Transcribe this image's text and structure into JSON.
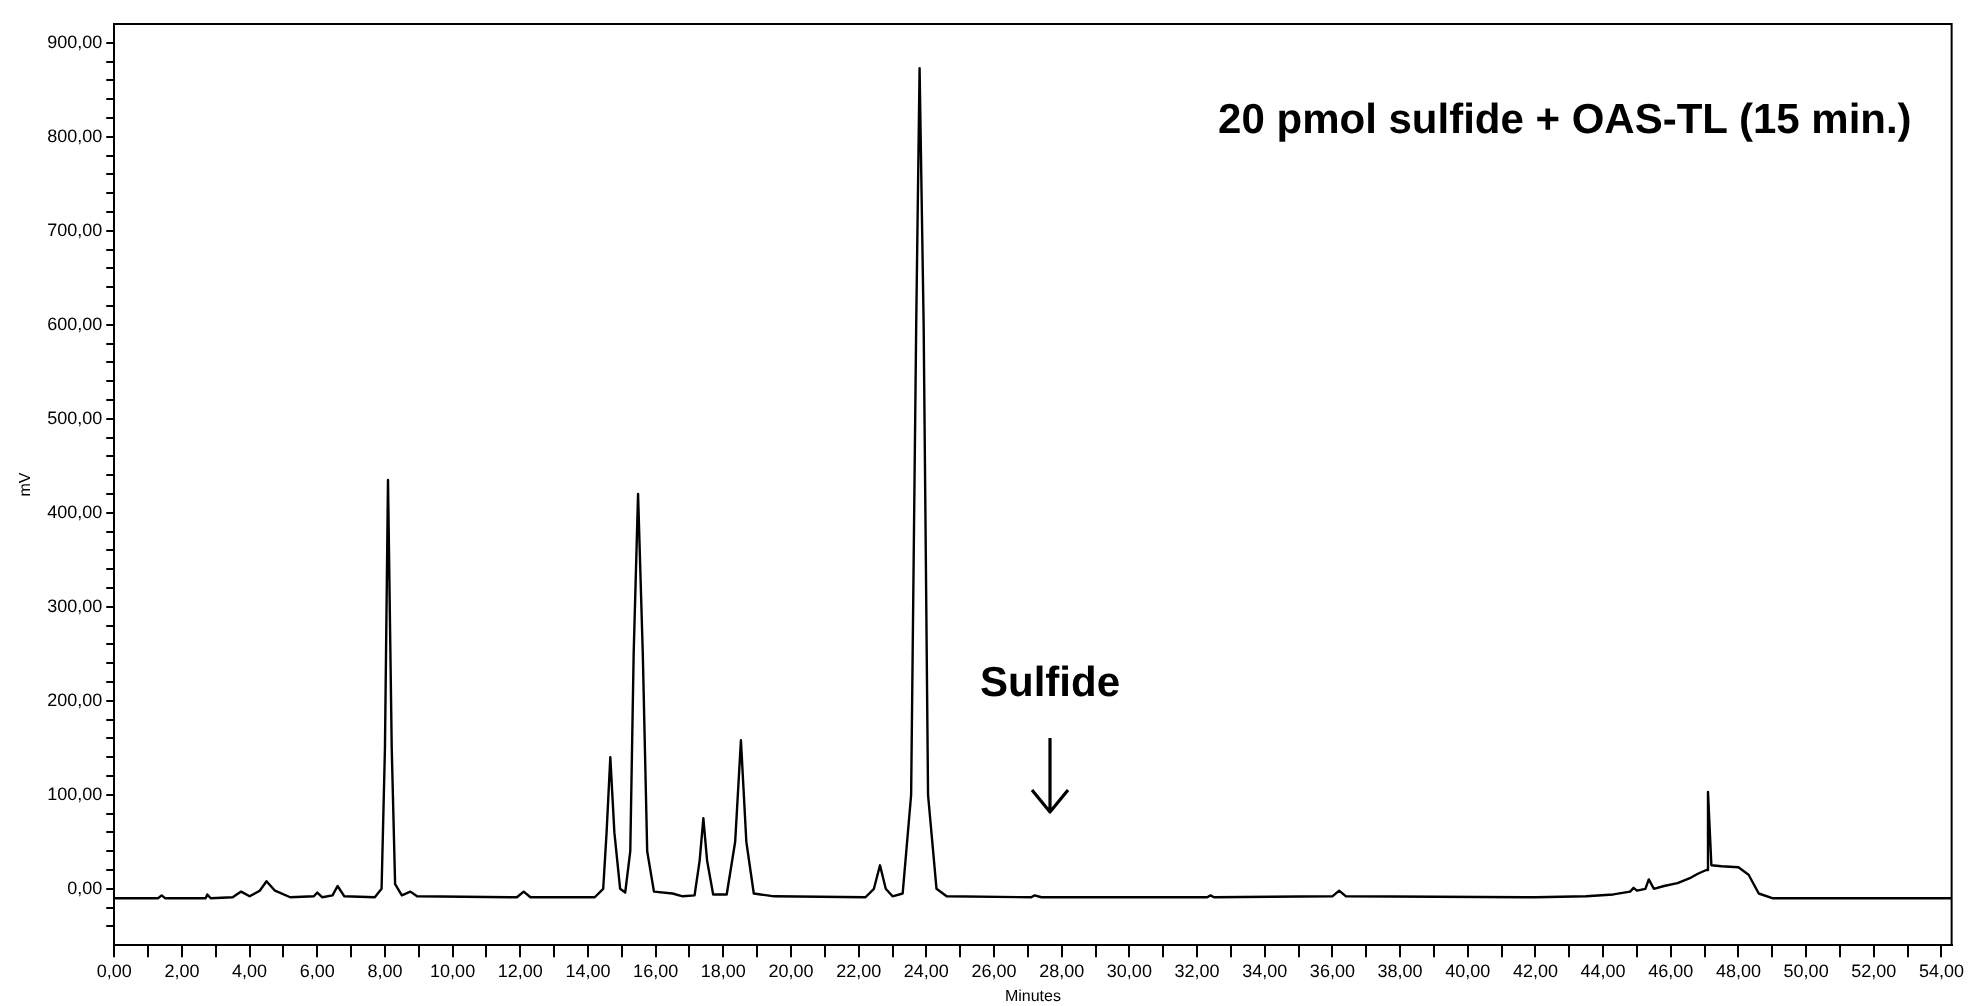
{
  "chart_data": {
    "type": "line",
    "title": "20 pmol sulfide + OAS-TL (15 min.)",
    "xlabel": "Minutes",
    "ylabel": "mV",
    "color": "#000000",
    "marker": "none",
    "line_style": "solid",
    "grid": false,
    "legend": false,
    "annotations": [
      "Sulfide"
    ],
    "xlim": [
      0,
      54.3
    ],
    "xticks": [
      {
        "value": 0,
        "label": "0,00"
      },
      {
        "value": 1,
        "label": null
      },
      {
        "value": 2,
        "label": "2,00"
      },
      {
        "value": 3,
        "label": null
      },
      {
        "value": 4,
        "label": "4,00"
      },
      {
        "value": 5,
        "label": null
      },
      {
        "value": 6,
        "label": "6,00"
      },
      {
        "value": 7,
        "label": null
      },
      {
        "value": 8,
        "label": "8,00"
      },
      {
        "value": 9,
        "label": null
      },
      {
        "value": 10,
        "label": "10,00"
      },
      {
        "value": 11,
        "label": null
      },
      {
        "value": 12,
        "label": "12,00"
      },
      {
        "value": 13,
        "label": null
      },
      {
        "value": 14,
        "label": "14,00"
      },
      {
        "value": 15,
        "label": null
      },
      {
        "value": 16,
        "label": "16,00"
      },
      {
        "value": 17,
        "label": null
      },
      {
        "value": 18,
        "label": "18,00"
      },
      {
        "value": 19,
        "label": null
      },
      {
        "value": 20,
        "label": "20,00"
      },
      {
        "value": 21,
        "label": null
      },
      {
        "value": 22,
        "label": "22,00"
      },
      {
        "value": 23,
        "label": null
      },
      {
        "value": 24,
        "label": "24,00"
      },
      {
        "value": 25,
        "label": null
      },
      {
        "value": 26,
        "label": "26,00"
      },
      {
        "value": 27,
        "label": null
      },
      {
        "value": 28,
        "label": "28,00"
      },
      {
        "value": 29,
        "label": null
      },
      {
        "value": 30,
        "label": "30,00"
      },
      {
        "value": 31,
        "label": null
      },
      {
        "value": 32,
        "label": "32,00"
      },
      {
        "value": 33,
        "label": null
      },
      {
        "value": 34,
        "label": "34,00"
      },
      {
        "value": 35,
        "label": null
      },
      {
        "value": 36,
        "label": "36,00"
      },
      {
        "value": 37,
        "label": null
      },
      {
        "value": 38,
        "label": "38,00"
      },
      {
        "value": 39,
        "label": null
      },
      {
        "value": 40,
        "label": "40,00"
      },
      {
        "value": 41,
        "label": null
      },
      {
        "value": 42,
        "label": "42,00"
      },
      {
        "value": 43,
        "label": null
      },
      {
        "value": 44,
        "label": "44,00"
      },
      {
        "value": 45,
        "label": null
      },
      {
        "value": 46,
        "label": "46,00"
      },
      {
        "value": 47,
        "label": null
      },
      {
        "value": 48,
        "label": "48,00"
      },
      {
        "value": 49,
        "label": null
      },
      {
        "value": 50,
        "label": "50,00"
      },
      {
        "value": 51,
        "label": null
      },
      {
        "value": 52,
        "label": "52,00"
      },
      {
        "value": 53,
        "label": null
      },
      {
        "value": 54,
        "label": "54,00"
      }
    ],
    "ylim": [
      -60,
      920
    ],
    "yticks": [
      {
        "value": -40,
        "label": null
      },
      {
        "value": -20,
        "label": null
      },
      {
        "value": 0,
        "label": "0,00"
      },
      {
        "value": 20,
        "label": null
      },
      {
        "value": 40,
        "label": null
      },
      {
        "value": 60,
        "label": null
      },
      {
        "value": 80,
        "label": null
      },
      {
        "value": 100,
        "label": "100,00"
      },
      {
        "value": 120,
        "label": null
      },
      {
        "value": 140,
        "label": null
      },
      {
        "value": 160,
        "label": null
      },
      {
        "value": 180,
        "label": null
      },
      {
        "value": 200,
        "label": "200,00"
      },
      {
        "value": 220,
        "label": null
      },
      {
        "value": 240,
        "label": null
      },
      {
        "value": 260,
        "label": null
      },
      {
        "value": 280,
        "label": null
      },
      {
        "value": 300,
        "label": "300,00"
      },
      {
        "value": 320,
        "label": null
      },
      {
        "value": 340,
        "label": null
      },
      {
        "value": 360,
        "label": null
      },
      {
        "value": 380,
        "label": null
      },
      {
        "value": 400,
        "label": "400,00"
      },
      {
        "value": 420,
        "label": null
      },
      {
        "value": 440,
        "label": null
      },
      {
        "value": 460,
        "label": null
      },
      {
        "value": 480,
        "label": null
      },
      {
        "value": 500,
        "label": "500,00"
      },
      {
        "value": 520,
        "label": null
      },
      {
        "value": 540,
        "label": null
      },
      {
        "value": 560,
        "label": null
      },
      {
        "value": 580,
        "label": null
      },
      {
        "value": 600,
        "label": "600,00"
      },
      {
        "value": 620,
        "label": null
      },
      {
        "value": 640,
        "label": null
      },
      {
        "value": 660,
        "label": null
      },
      {
        "value": 680,
        "label": null
      },
      {
        "value": 700,
        "label": "700,00"
      },
      {
        "value": 720,
        "label": null
      },
      {
        "value": 740,
        "label": null
      },
      {
        "value": 760,
        "label": null
      },
      {
        "value": 780,
        "label": null
      },
      {
        "value": 800,
        "label": "800,00"
      },
      {
        "value": 820,
        "label": null
      },
      {
        "value": 840,
        "label": null
      },
      {
        "value": 860,
        "label": null
      },
      {
        "value": 880,
        "label": null
      },
      {
        "value": 900,
        "label": "900,00"
      }
    ],
    "x": [
      0,
      1.3,
      1.4,
      1.5,
      2.7,
      2.75,
      2.85,
      3.5,
      3.75,
      4.0,
      4.3,
      4.5,
      4.75,
      5.2,
      5.9,
      6.0,
      6.15,
      6.45,
      6.6,
      6.8,
      7.7,
      7.9,
      8.0,
      8.09,
      8.2,
      8.3,
      8.5,
      8.75,
      8.95,
      11.9,
      12.1,
      12.3,
      14.2,
      14.45,
      14.55,
      14.66,
      14.78,
      14.95,
      15.1,
      15.25,
      15.35,
      15.48,
      15.62,
      15.75,
      15.95,
      16.5,
      16.8,
      17.15,
      17.3,
      17.41,
      17.52,
      17.7,
      18.1,
      18.35,
      18.52,
      18.68,
      18.9,
      19.5,
      22.2,
      22.45,
      22.63,
      22.8,
      23.0,
      23.3,
      23.55,
      23.7,
      23.8,
      23.92,
      24.05,
      24.3,
      24.6,
      27.1,
      27.2,
      27.4,
      32.3,
      32.4,
      32.5,
      36.0,
      36.2,
      36.4,
      42.0,
      43.5,
      44.3,
      44.8,
      44.9,
      45.0,
      45.25,
      45.35,
      45.5,
      45.8,
      46.2,
      46.6,
      46.8,
      47.05,
      47.1,
      47.2,
      47.5,
      48.0,
      48.3,
      48.6,
      49.0,
      54.3
    ],
    "values": [
      -10,
      -10,
      -7,
      -10,
      -10,
      -6,
      -10,
      -9,
      -3,
      -8,
      -2,
      8,
      -2,
      -9,
      -8,
      -4,
      -9,
      -7,
      3,
      -8,
      -9,
      0,
      150,
      435,
      150,
      5,
      -7,
      -3,
      -8,
      -9,
      -3,
      -9,
      -9,
      0,
      60,
      140,
      60,
      0,
      -4,
      40,
      250,
      420,
      250,
      40,
      -3,
      -5,
      -8,
      -7,
      30,
      75,
      30,
      -6,
      -6,
      50,
      158,
      50,
      -5,
      -8,
      -9,
      0,
      25,
      0,
      -8,
      -5,
      100,
      600,
      873,
      600,
      100,
      0,
      -8,
      -9,
      -7,
      -9,
      -9,
      -7,
      -9,
      -8,
      -2,
      -8,
      -9,
      -8,
      -6,
      -3,
      1,
      -2,
      0,
      10,
      0,
      3,
      6,
      12,
      16,
      20,
      103,
      25,
      24,
      23,
      15,
      -5,
      -10,
      -10
    ]
  }
}
